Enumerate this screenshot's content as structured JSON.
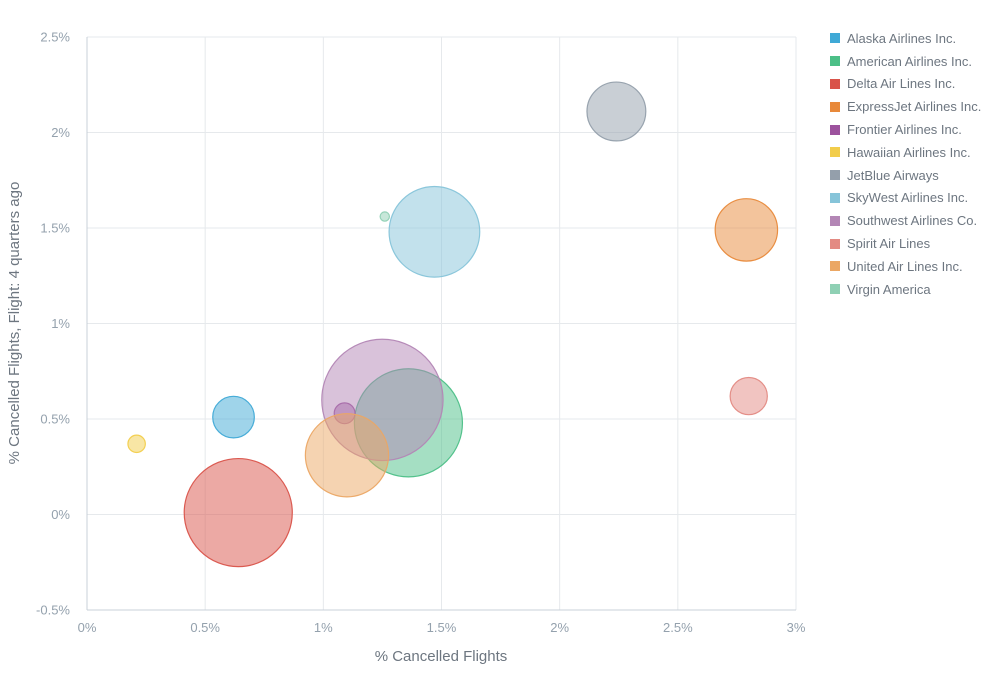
{
  "chart_data": {
    "type": "scatter",
    "xlabel": "% Cancelled Flights",
    "ylabel": "% Cancelled Flights, Flight: 4 quarters ago",
    "xlim": [
      0,
      3
    ],
    "ylim": [
      -0.5,
      2.5
    ],
    "x_ticks": [
      "0%",
      "0.5%",
      "1%",
      "1.5%",
      "2%",
      "2.5%",
      "3%"
    ],
    "y_ticks": [
      "2.5%",
      "2%",
      "1.5%",
      "1%",
      "0.5%",
      "0%",
      "-0.5%"
    ],
    "grid": true,
    "legend_position": "right",
    "size_encoding": "bubble area (relative)",
    "series": [
      {
        "name": "Alaska Airlines Inc.",
        "color": "#3fa9d6",
        "x": 0.62,
        "y": 0.51,
        "size": 4
      },
      {
        "name": "American Airlines Inc.",
        "color": "#4cbf87",
        "x": 1.36,
        "y": 0.48,
        "size": 27
      },
      {
        "name": "Delta Air Lines Inc.",
        "color": "#d9534a",
        "x": 0.64,
        "y": 0.01,
        "size": 27
      },
      {
        "name": "ExpressJet Airlines Inc.",
        "color": "#e8893a",
        "x": 2.79,
        "y": 1.49,
        "size": 9
      },
      {
        "name": "Frontier Airlines Inc.",
        "color": "#9c529d",
        "x": 1.09,
        "y": 0.53,
        "size": 1
      },
      {
        "name": "Hawaiian Airlines Inc.",
        "color": "#f2cd4b",
        "x": 0.21,
        "y": 0.37,
        "size": 0.7
      },
      {
        "name": "JetBlue Airways",
        "color": "#949fab",
        "x": 2.24,
        "y": 2.11,
        "size": 8
      },
      {
        "name": "SkyWest Airlines Inc.",
        "color": "#86c4d9",
        "x": 1.47,
        "y": 1.48,
        "size": 19
      },
      {
        "name": "Southwest Airlines Co.",
        "color": "#b386b5",
        "x": 1.25,
        "y": 0.6,
        "size": 34
      },
      {
        "name": "Spirit Air Lines",
        "color": "#e38a83",
        "x": 2.8,
        "y": 0.62,
        "size": 3.2
      },
      {
        "name": "United Air Lines Inc.",
        "color": "#eba764",
        "x": 1.1,
        "y": 0.31,
        "size": 16
      },
      {
        "name": "Virgin America",
        "color": "#8fd0b4",
        "x": 1.26,
        "y": 1.56,
        "size": 0.2
      }
    ]
  }
}
